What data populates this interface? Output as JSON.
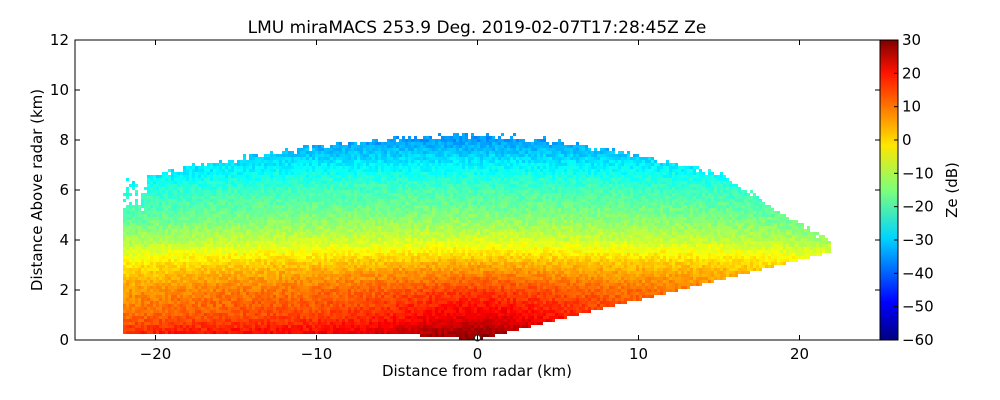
{
  "chart_data": {
    "type": "heatmap",
    "title": "LMU miraMACS 253.9 Deg. 2019-02-07T17:28:45Z  Ze",
    "xlabel": "Distance from radar (km)",
    "ylabel": "Distance Above radar  (km)",
    "xlim": [
      -25,
      25
    ],
    "ylim": [
      0,
      12
    ],
    "xticks": [
      -20,
      -10,
      0,
      10,
      20
    ],
    "xtick_labels": [
      "−20",
      "−10",
      "0",
      "10",
      "20"
    ],
    "yticks": [
      0,
      2,
      4,
      6,
      8,
      10,
      12
    ],
    "ytick_labels": [
      "0",
      "2",
      "4",
      "6",
      "8",
      "10",
      "12"
    ],
    "colorbar": {
      "label": "Ze (dB)",
      "range": [
        -60,
        30
      ],
      "ticks": [
        -60,
        -50,
        -40,
        -30,
        -20,
        -10,
        0,
        10,
        20,
        30
      ],
      "tick_labels": [
        "−60",
        "−50",
        "−40",
        "−30",
        "−20",
        "−10",
        "0",
        "10",
        "20",
        "30"
      ],
      "colormap": "jet"
    },
    "radar_position_km": [
      0,
      0
    ],
    "scan": {
      "left_ground_extent_km": -22,
      "right_ground_extent_km": 22,
      "right_max_height_km": 3.9,
      "cloud_top_center_km": 8.2,
      "cloud_top_left_km": 6.4,
      "cloud_top_right_km": 6.8
    },
    "reflectivity_profile_dBZ": [
      {
        "height_km": 0.0,
        "value": 22
      },
      {
        "height_km": 0.5,
        "value": 17
      },
      {
        "height_km": 1.0,
        "value": 13
      },
      {
        "height_km": 2.0,
        "value": 9
      },
      {
        "height_km": 3.0,
        "value": 2
      },
      {
        "height_km": 4.0,
        "value": -8
      },
      {
        "height_km": 5.0,
        "value": -15
      },
      {
        "height_km": 6.0,
        "value": -20
      },
      {
        "height_km": 7.0,
        "value": -27
      },
      {
        "height_km": 8.0,
        "value": -35
      }
    ]
  }
}
